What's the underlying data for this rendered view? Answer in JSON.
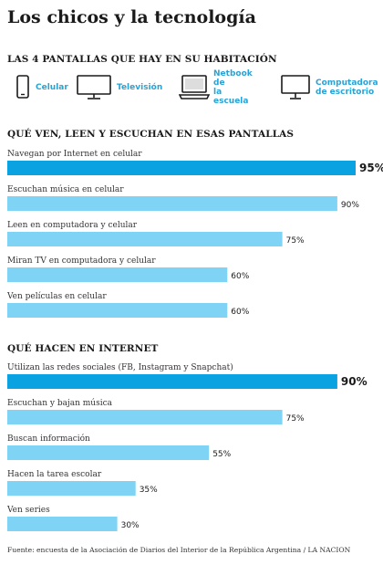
{
  "title": "Los chicos y la tecnología",
  "screens_heading": "LAS 4 PANTALLAS QUE HAY EN SU HABITACIÓN",
  "screens": [
    {
      "icon": "phone-icon",
      "label": "Celular"
    },
    {
      "icon": "tv-icon",
      "label": "Televisión"
    },
    {
      "icon": "laptop-icon",
      "label": "Netbook de\nla escuela"
    },
    {
      "icon": "monitor-icon",
      "label": "Computadora\nde escritorio"
    }
  ],
  "colors": {
    "bar": "#7fd3f4",
    "highlight": "#0aa2e0",
    "accent_text": "#29a3d6"
  },
  "chart_data": [
    {
      "type": "bar",
      "title": "QUÉ VEN, LEEN Y ESCUCHAN EN ESAS PANTALLAS",
      "categories": [
        "Navegan por Internet en celular",
        "Escuchan música en celular",
        "Leen en computadora y celular",
        "Miran TV en computadora y celular",
        "Ven películas en celular"
      ],
      "values": [
        95,
        90,
        75,
        60,
        60
      ],
      "value_labels": [
        "95%",
        "90%",
        "75%",
        "60%",
        "60%"
      ],
      "highlight_index": 0,
      "xlim": [
        0,
        95
      ]
    },
    {
      "type": "bar",
      "title": "QUÉ HACEN EN INTERNET",
      "categories": [
        "Utilizan las redes sociales (FB, Instagram y Snapchat)",
        "Escuchan y bajan música",
        "Buscan información",
        "Hacen la tarea escolar",
        "Ven series"
      ],
      "values": [
        90,
        75,
        55,
        35,
        30
      ],
      "value_labels": [
        "90%",
        "75%",
        "55%",
        "35%",
        "30%"
      ],
      "highlight_index": 0,
      "xlim": [
        0,
        95
      ]
    }
  ],
  "source": "Fuente: encuesta de la Asociación de Diarios del Interior de la República Argentina / LA NACION"
}
